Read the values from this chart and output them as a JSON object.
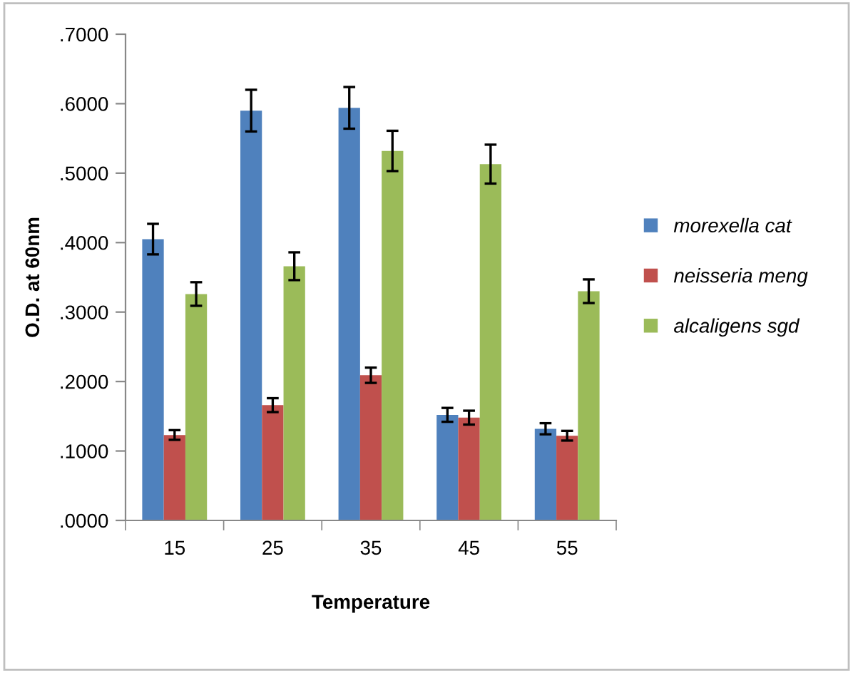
{
  "chart_data": {
    "type": "bar",
    "xlabel": "Temperature",
    "ylabel": "O.D. at 60nm",
    "categories": [
      "15",
      "25",
      "35",
      "45",
      "55"
    ],
    "series": [
      {
        "name": "morexella cat",
        "color": "#4f81bd",
        "values": [
          0.405,
          0.59,
          0.594,
          0.152,
          0.132
        ],
        "errors": [
          0.022,
          0.03,
          0.03,
          0.01,
          0.008
        ]
      },
      {
        "name": "neisseria meng",
        "color": "#c0504d",
        "values": [
          0.123,
          0.166,
          0.209,
          0.148,
          0.122
        ],
        "errors": [
          0.007,
          0.01,
          0.011,
          0.01,
          0.007
        ]
      },
      {
        "name": "alcaligens sgd",
        "color": "#9bbb59",
        "values": [
          0.326,
          0.366,
          0.532,
          0.513,
          0.33
        ],
        "errors": [
          0.017,
          0.02,
          0.029,
          0.028,
          0.017
        ]
      }
    ],
    "ylim": [
      0,
      0.7
    ],
    "yticks": [
      {
        "value": 0,
        "label": ".0000"
      },
      {
        "value": 0.1,
        "label": ".1000"
      },
      {
        "value": 0.2,
        "label": ".2000"
      },
      {
        "value": 0.3,
        "label": ".3000"
      },
      {
        "value": 0.4,
        "label": ".4000"
      },
      {
        "value": 0.5,
        "label": ".5000"
      },
      {
        "value": 0.6,
        "label": ".6000"
      },
      {
        "value": 0.7,
        "label": ".7000"
      }
    ],
    "grid": false,
    "legend": "right"
  }
}
